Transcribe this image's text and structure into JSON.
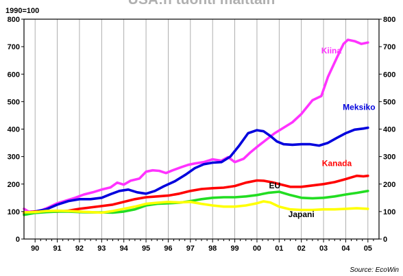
{
  "chart_data": {
    "type": "line",
    "title": "USA:n tuonti maittain",
    "base_label": "1990=100",
    "source": "Source: EcoWin",
    "ylim": [
      0,
      800
    ],
    "y_ticks": [
      0,
      100,
      200,
      300,
      400,
      500,
      600,
      700,
      800
    ],
    "x_range": [
      1989.5,
      2005.5
    ],
    "x_ticks": [
      {
        "label": "90",
        "x": 1990
      },
      {
        "label": "91",
        "x": 1991
      },
      {
        "label": "92",
        "x": 1992
      },
      {
        "label": "93",
        "x": 1993
      },
      {
        "label": "94",
        "x": 1994
      },
      {
        "label": "95",
        "x": 1995
      },
      {
        "label": "96",
        "x": 1996
      },
      {
        "label": "97",
        "x": 1997
      },
      {
        "label": "98",
        "x": 1998
      },
      {
        "label": "99",
        "x": 1999
      },
      {
        "label": "00",
        "x": 2000
      },
      {
        "label": "01",
        "x": 2001
      },
      {
        "label": "02",
        "x": 2002
      },
      {
        "label": "03",
        "x": 2003
      },
      {
        "label": "04",
        "x": 2004
      },
      {
        "label": "05",
        "x": 2005
      }
    ],
    "grid": "vertical",
    "series": [
      {
        "name": "Kiina",
        "color": "#ff33ff",
        "points": [
          [
            1989.5,
            110
          ],
          [
            1989.7,
            100
          ],
          [
            1990.0,
            100
          ],
          [
            1990.3,
            105
          ],
          [
            1990.6,
            115
          ],
          [
            1991.0,
            130
          ],
          [
            1991.4,
            140
          ],
          [
            1991.8,
            150
          ],
          [
            1992.2,
            162
          ],
          [
            1992.6,
            170
          ],
          [
            1993.0,
            180
          ],
          [
            1993.4,
            188
          ],
          [
            1993.7,
            205
          ],
          [
            1994.0,
            198
          ],
          [
            1994.3,
            212
          ],
          [
            1994.7,
            220
          ],
          [
            1995.0,
            245
          ],
          [
            1995.3,
            250
          ],
          [
            1995.6,
            248
          ],
          [
            1995.9,
            240
          ],
          [
            1996.2,
            250
          ],
          [
            1996.6,
            262
          ],
          [
            1996.9,
            270
          ],
          [
            1997.2,
            275
          ],
          [
            1997.6,
            280
          ],
          [
            1998.0,
            290
          ],
          [
            1998.4,
            285
          ],
          [
            1998.7,
            298
          ],
          [
            1999.0,
            280
          ],
          [
            1999.4,
            292
          ],
          [
            1999.7,
            315
          ],
          [
            2000.0,
            335
          ],
          [
            2000.4,
            360
          ],
          [
            2000.8,
            385
          ],
          [
            2001.2,
            405
          ],
          [
            2001.6,
            425
          ],
          [
            2002.0,
            455
          ],
          [
            2002.5,
            505
          ],
          [
            2002.9,
            520
          ],
          [
            2003.2,
            590
          ],
          [
            2003.6,
            660
          ],
          [
            2003.9,
            710
          ],
          [
            2004.1,
            725
          ],
          [
            2004.4,
            720
          ],
          [
            2004.7,
            710
          ],
          [
            2005.0,
            715
          ]
        ]
      },
      {
        "name": "Meksiko",
        "color": "#0000dd",
        "points": [
          [
            1989.5,
            95
          ],
          [
            1990.0,
            100
          ],
          [
            1990.5,
            108
          ],
          [
            1991.0,
            125
          ],
          [
            1991.5,
            138
          ],
          [
            1992.0,
            145
          ],
          [
            1992.5,
            145
          ],
          [
            1993.0,
            150
          ],
          [
            1993.4,
            163
          ],
          [
            1993.8,
            175
          ],
          [
            1994.2,
            180
          ],
          [
            1994.6,
            170
          ],
          [
            1995.0,
            165
          ],
          [
            1995.4,
            175
          ],
          [
            1995.8,
            192
          ],
          [
            1996.3,
            210
          ],
          [
            1996.8,
            235
          ],
          [
            1997.2,
            258
          ],
          [
            1997.6,
            272
          ],
          [
            1998.0,
            278
          ],
          [
            1998.4,
            280
          ],
          [
            1998.8,
            300
          ],
          [
            1999.2,
            340
          ],
          [
            1999.6,
            385
          ],
          [
            2000.0,
            396
          ],
          [
            2000.3,
            392
          ],
          [
            2000.6,
            375
          ],
          [
            2000.9,
            355
          ],
          [
            2001.2,
            345
          ],
          [
            2001.6,
            343
          ],
          [
            2002.0,
            345
          ],
          [
            2002.4,
            345
          ],
          [
            2002.8,
            340
          ],
          [
            2003.2,
            350
          ],
          [
            2003.6,
            368
          ],
          [
            2004.0,
            385
          ],
          [
            2004.4,
            398
          ],
          [
            2004.8,
            402
          ],
          [
            2005.0,
            405
          ]
        ]
      },
      {
        "name": "Kanada",
        "color": "#ff0000",
        "points": [
          [
            1989.5,
            95
          ],
          [
            1990.0,
            100
          ],
          [
            1990.5,
            100
          ],
          [
            1991.0,
            100
          ],
          [
            1991.5,
            103
          ],
          [
            1992.0,
            110
          ],
          [
            1992.5,
            115
          ],
          [
            1993.0,
            120
          ],
          [
            1993.5,
            125
          ],
          [
            1994.0,
            135
          ],
          [
            1994.5,
            145
          ],
          [
            1995.0,
            152
          ],
          [
            1995.5,
            155
          ],
          [
            1996.0,
            158
          ],
          [
            1996.5,
            165
          ],
          [
            1997.0,
            175
          ],
          [
            1997.5,
            182
          ],
          [
            1998.0,
            185
          ],
          [
            1998.5,
            187
          ],
          [
            1999.0,
            193
          ],
          [
            1999.5,
            205
          ],
          [
            2000.0,
            213
          ],
          [
            2000.3,
            212
          ],
          [
            2000.7,
            206
          ],
          [
            2001.0,
            200
          ],
          [
            2001.5,
            190
          ],
          [
            2002.0,
            190
          ],
          [
            2002.5,
            195
          ],
          [
            2003.0,
            200
          ],
          [
            2003.5,
            207
          ],
          [
            2004.0,
            218
          ],
          [
            2004.5,
            230
          ],
          [
            2004.8,
            228
          ],
          [
            2005.0,
            230
          ]
        ]
      },
      {
        "name": "EU",
        "color": "#22dd22",
        "points": [
          [
            1989.5,
            88
          ],
          [
            1990.0,
            95
          ],
          [
            1990.5,
            98
          ],
          [
            1991.0,
            100
          ],
          [
            1991.5,
            100
          ],
          [
            1992.0,
            98
          ],
          [
            1992.5,
            97
          ],
          [
            1993.0,
            97
          ],
          [
            1993.5,
            96
          ],
          [
            1994.0,
            100
          ],
          [
            1994.5,
            108
          ],
          [
            1995.0,
            122
          ],
          [
            1995.5,
            128
          ],
          [
            1996.0,
            130
          ],
          [
            1996.5,
            132
          ],
          [
            1997.0,
            138
          ],
          [
            1997.5,
            145
          ],
          [
            1998.0,
            150
          ],
          [
            1998.5,
            152
          ],
          [
            1999.0,
            152
          ],
          [
            1999.5,
            155
          ],
          [
            2000.0,
            160
          ],
          [
            2000.5,
            168
          ],
          [
            2001.0,
            172
          ],
          [
            2001.5,
            160
          ],
          [
            2002.0,
            150
          ],
          [
            2002.5,
            148
          ],
          [
            2003.0,
            150
          ],
          [
            2003.5,
            155
          ],
          [
            2004.0,
            162
          ],
          [
            2004.5,
            168
          ],
          [
            2005.0,
            175
          ]
        ]
      },
      {
        "name": "Japani",
        "color": "#ffff00",
        "points": [
          [
            1989.5,
            97
          ],
          [
            1990.0,
            98
          ],
          [
            1990.5,
            102
          ],
          [
            1991.0,
            103
          ],
          [
            1991.5,
            102
          ],
          [
            1992.0,
            100
          ],
          [
            1992.5,
            98
          ],
          [
            1993.0,
            96
          ],
          [
            1993.5,
            102
          ],
          [
            1994.0,
            110
          ],
          [
            1994.5,
            118
          ],
          [
            1995.0,
            128
          ],
          [
            1995.5,
            132
          ],
          [
            1996.0,
            135
          ],
          [
            1996.5,
            133
          ],
          [
            1997.0,
            135
          ],
          [
            1997.5,
            128
          ],
          [
            1998.0,
            122
          ],
          [
            1998.5,
            118
          ],
          [
            1999.0,
            118
          ],
          [
            1999.5,
            122
          ],
          [
            2000.0,
            130
          ],
          [
            2000.3,
            137
          ],
          [
            2000.6,
            133
          ],
          [
            2001.0,
            118
          ],
          [
            2001.5,
            108
          ],
          [
            2002.0,
            106
          ],
          [
            2002.5,
            106
          ],
          [
            2003.0,
            108
          ],
          [
            2003.5,
            108
          ],
          [
            2004.0,
            110
          ],
          [
            2004.5,
            112
          ],
          [
            2005.0,
            110
          ]
        ]
      }
    ]
  }
}
